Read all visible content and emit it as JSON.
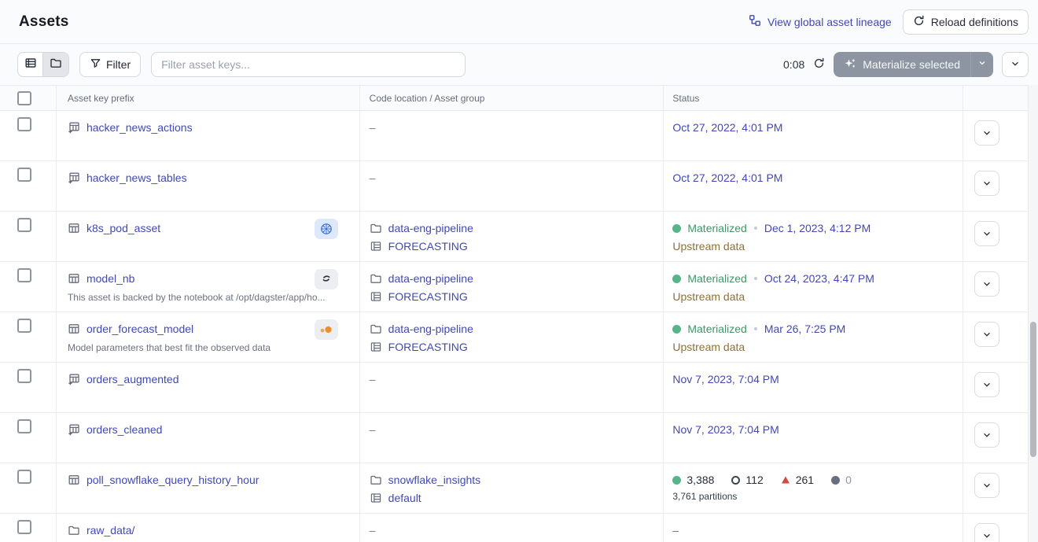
{
  "header": {
    "title": "Assets",
    "lineage_link": "View global asset lineage",
    "reload_button": "Reload definitions"
  },
  "toolbar": {
    "filter_label": "Filter",
    "search_placeholder": "Filter asset keys...",
    "countdown": "0:08",
    "materialize_label": "Materialize selected"
  },
  "table": {
    "headers": {
      "asset_key": "Asset key prefix",
      "code_location": "Code location / Asset group",
      "status": "Status"
    },
    "empty_value": "–",
    "rows": [
      {
        "name": "hacker_news_actions",
        "icon": "asset-prefix",
        "location": null,
        "status": {
          "type": "timestamp",
          "timestamp": "Oct 27, 2022, 4:01 PM"
        }
      },
      {
        "name": "hacker_news_tables",
        "icon": "asset-prefix",
        "location": null,
        "status": {
          "type": "timestamp",
          "timestamp": "Oct 27, 2022, 4:01 PM"
        }
      },
      {
        "name": "k8s_pod_asset",
        "icon": "table",
        "badge": "kubernetes",
        "location": {
          "code_location": "data-eng-pipeline",
          "asset_group": "FORECASTING"
        },
        "status": {
          "type": "materialized",
          "label": "Materialized",
          "timestamp": "Dec 1, 2023, 4:12 PM",
          "note": "Upstream data"
        }
      },
      {
        "name": "model_nb",
        "icon": "table",
        "badge": "noteable",
        "description": "This asset is backed by the notebook at /opt/dagster/app/ho...",
        "location": {
          "code_location": "data-eng-pipeline",
          "asset_group": "FORECASTING"
        },
        "status": {
          "type": "materialized",
          "label": "Materialized",
          "timestamp": "Oct 24, 2023, 4:47 PM",
          "note": "Upstream data"
        }
      },
      {
        "name": "order_forecast_model",
        "icon": "table",
        "badge": "orange-dots",
        "description": "Model parameters that best fit the observed data",
        "location": {
          "code_location": "data-eng-pipeline",
          "asset_group": "FORECASTING"
        },
        "status": {
          "type": "materialized",
          "label": "Materialized",
          "timestamp": "Mar 26, 7:25 PM",
          "note": "Upstream data"
        }
      },
      {
        "name": "orders_augmented",
        "icon": "asset-prefix",
        "location": null,
        "status": {
          "type": "timestamp",
          "timestamp": "Nov 7, 2023, 7:04 PM"
        }
      },
      {
        "name": "orders_cleaned",
        "icon": "asset-prefix",
        "location": null,
        "status": {
          "type": "timestamp",
          "timestamp": "Nov 7, 2023, 7:04 PM"
        }
      },
      {
        "name": "poll_snowflake_query_history_hour",
        "icon": "table",
        "location": {
          "code_location": "snowflake_insights",
          "asset_group": "default"
        },
        "status": {
          "type": "partitions",
          "counts": [
            {
              "kind": "dot-green",
              "value": "3,388"
            },
            {
              "kind": "circle-hollow",
              "value": "112"
            },
            {
              "kind": "triangle-red",
              "value": "261"
            },
            {
              "kind": "dot-gray",
              "value": "0",
              "muted": true
            }
          ],
          "label": "3,761 partitions"
        }
      },
      {
        "name": "raw_data/",
        "icon": "folder",
        "location": null,
        "status": {
          "type": "empty"
        }
      }
    ]
  },
  "colors": {
    "text": "#20242e",
    "link": "#4149b0",
    "green": "#56b687",
    "green_text": "#3f9768",
    "warning": "#8d7134",
    "red": "#cf4a41",
    "gray_dot": "#667082",
    "k8s_blue": "#3069d6",
    "orange": "#ee8f2f",
    "button_gray": "#8c95a1"
  }
}
